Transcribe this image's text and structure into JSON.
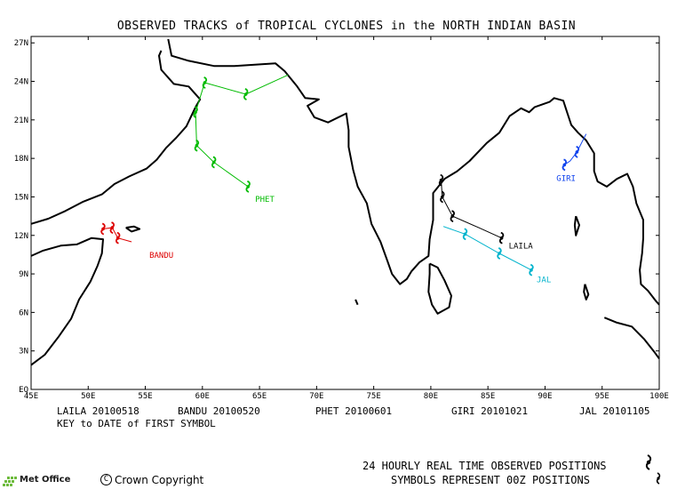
{
  "header": {
    "title": "OBSERVED TRACKS of TROPICAL CYCLONES in the NORTH INDIAN BASIN"
  },
  "map": {
    "lon_range": [
      45,
      100
    ],
    "lat_range": [
      0,
      27.5
    ],
    "lon_ticks": [
      "45E",
      "50E",
      "55E",
      "60E",
      "65E",
      "70E",
      "75E",
      "80E",
      "85E",
      "90E",
      "95E",
      "100E"
    ],
    "lat_ticks": [
      "EQ",
      "3N",
      "6N",
      "9N",
      "12N",
      "15N",
      "18N",
      "21N",
      "24N",
      "27N"
    ],
    "land_color": "#000000",
    "background": "#ffffff"
  },
  "storms": [
    {
      "name": "LAILA",
      "first_date": "20100518",
      "color": "#000000",
      "label": "LAILA",
      "track": [
        [
          86.2,
          11.8
        ],
        [
          84.2,
          12.6
        ],
        [
          81.9,
          13.5
        ],
        [
          81.0,
          15.0
        ],
        [
          80.9,
          16.3
        ]
      ],
      "symbols": [
        [
          86.2,
          11.8
        ],
        [
          81.9,
          13.5
        ],
        [
          81.0,
          15.0
        ],
        [
          80.9,
          16.3
        ]
      ]
    },
    {
      "name": "BANDU",
      "first_date": "20100520",
      "color": "#dd0000",
      "label": "BANDU",
      "track": [
        [
          53.8,
          11.5
        ],
        [
          52.6,
          11.8
        ],
        [
          52.1,
          12.6
        ],
        [
          51.3,
          12.5
        ],
        [
          51.1,
          12.3
        ]
      ],
      "symbols": [
        [
          52.6,
          11.8
        ],
        [
          52.1,
          12.6
        ],
        [
          51.3,
          12.5
        ]
      ]
    },
    {
      "name": "PHET",
      "first_date": "20100601",
      "color": "#00bb00",
      "label": "PHET",
      "track": [
        [
          64.0,
          15.8
        ],
        [
          61.0,
          17.7
        ],
        [
          59.5,
          19.0
        ],
        [
          59.4,
          21.6
        ],
        [
          60.2,
          23.9
        ],
        [
          63.8,
          23.0
        ],
        [
          67.5,
          24.5
        ]
      ],
      "symbols": [
        [
          64.0,
          15.8
        ],
        [
          61.0,
          17.7
        ],
        [
          59.5,
          19.0
        ],
        [
          59.4,
          21.6
        ],
        [
          60.2,
          23.9
        ],
        [
          63.8,
          23.0
        ]
      ]
    },
    {
      "name": "GIRI",
      "first_date": "20101021",
      "color": "#1144ee",
      "label": "GIRI",
      "track": [
        [
          91.7,
          17.5
        ],
        [
          92.2,
          17.8
        ],
        [
          92.8,
          18.5
        ],
        [
          93.6,
          19.9
        ]
      ],
      "symbols": [
        [
          91.7,
          17.5
        ],
        [
          92.8,
          18.5
        ]
      ]
    },
    {
      "name": "JAL",
      "first_date": "20101105",
      "color": "#00b3cc",
      "label": "JAL",
      "track": [
        [
          88.8,
          9.3
        ],
        [
          86.0,
          10.6
        ],
        [
          83.0,
          12.1
        ],
        [
          81.1,
          12.7
        ]
      ],
      "symbols": [
        [
          88.8,
          9.3
        ],
        [
          86.0,
          10.6
        ],
        [
          83.0,
          12.1
        ]
      ]
    }
  ],
  "key": {
    "entries": [
      {
        "name": "LAILA",
        "date": "20100518"
      },
      {
        "name": "BANDU",
        "date": "20100520"
      },
      {
        "name": "PHET",
        "date": "20100601"
      },
      {
        "name": "GIRI",
        "date": "20101021"
      },
      {
        "name": "JAL",
        "date": "20101105"
      }
    ],
    "note": "KEY to DATE of FIRST SYMBOL"
  },
  "footer": {
    "legend_line1": "24 HOURLY REAL TIME OBSERVED POSITIONS",
    "legend_line2": "SYMBOLS REPRESENT 00Z POSITIONS",
    "copyright": "Crown Copyright",
    "copyright_symbol": "C",
    "logo": "Met Office",
    "cyclone_icon": "cyclone-symbol-icon"
  }
}
